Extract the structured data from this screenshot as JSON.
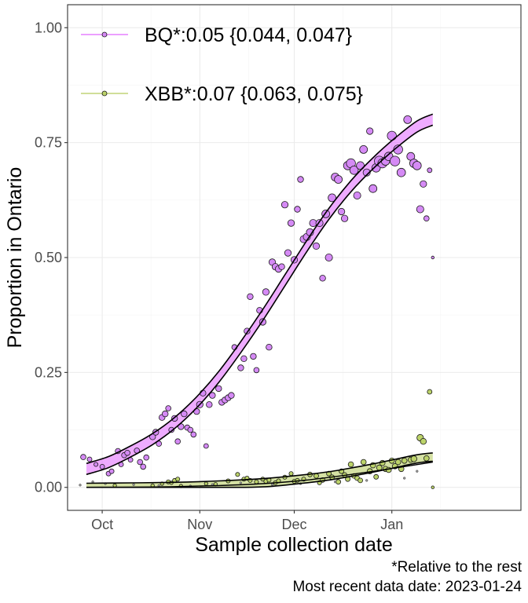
{
  "chart_data": {
    "type": "scatter",
    "xlabel": "Sample collection date",
    "ylabel": "Proportion in Ontario",
    "x_ticks": [
      {
        "date": "2022-10-01",
        "label": "Oct"
      },
      {
        "date": "2022-11-01",
        "label": "Nov"
      },
      {
        "date": "2022-12-01",
        "label": "Dec"
      },
      {
        "date": "2023-01-01",
        "label": "Jan"
      }
    ],
    "xlim": [
      "2022-09-20",
      "2023-02-11"
    ],
    "ylim": [
      -0.05,
      1.05
    ],
    "y_ticks": [
      0.0,
      0.25,
      0.5,
      0.75,
      1.0
    ],
    "y_tick_labels": [
      "0.00",
      "0.25",
      "0.50",
      "0.75",
      "1.00"
    ],
    "grid": true,
    "legend_position": "top-left",
    "series": [
      {
        "name": "BQ*:0.05 {0.044, 0.047}",
        "color": "#d58af5",
        "fit_color": "#e066ff",
        "fit": {
          "x": [
            "2022-09-26",
            "2022-10-03",
            "2022-10-10",
            "2022-10-17",
            "2022-10-24",
            "2022-10-31",
            "2022-11-07",
            "2022-11-14",
            "2022-11-21",
            "2022-11-28",
            "2022-12-05",
            "2022-12-12",
            "2022-12-19",
            "2022-12-26",
            "2023-01-02",
            "2023-01-09",
            "2023-01-14"
          ],
          "y": [
            0.04,
            0.055,
            0.078,
            0.105,
            0.14,
            0.185,
            0.24,
            0.305,
            0.375,
            0.45,
            0.525,
            0.595,
            0.655,
            0.705,
            0.748,
            0.785,
            0.8
          ],
          "band": 0.012
        },
        "points": [
          [
            "2022-09-25",
            0.066,
            0.3
          ],
          [
            "2022-09-27",
            0.061,
            0.25
          ],
          [
            "2022-09-29",
            0.05,
            0.2
          ],
          [
            "2022-10-01",
            0.045,
            0.25
          ],
          [
            "2022-10-03",
            0.03,
            0.25
          ],
          [
            "2022-10-04",
            0.035,
            0.25
          ],
          [
            "2022-10-06",
            0.079,
            0.3
          ],
          [
            "2022-10-07",
            0.05,
            0.25
          ],
          [
            "2022-10-08",
            0.07,
            0.3
          ],
          [
            "2022-10-09",
            0.075,
            0.3
          ],
          [
            "2022-10-10",
            0.06,
            0.25
          ],
          [
            "2022-10-12",
            0.08,
            0.3
          ],
          [
            "2022-10-13",
            0.055,
            0.3
          ],
          [
            "2022-10-14",
            0.045,
            0.3
          ],
          [
            "2022-10-15",
            0.065,
            0.3
          ],
          [
            "2022-10-17",
            0.11,
            0.35
          ],
          [
            "2022-10-18",
            0.12,
            0.35
          ],
          [
            "2022-10-19",
            0.095,
            0.3
          ],
          [
            "2022-10-20",
            0.152,
            0.35
          ],
          [
            "2022-10-21",
            0.16,
            0.35
          ],
          [
            "2022-10-22",
            0.172,
            0.3
          ],
          [
            "2022-10-23",
            0.125,
            0.3
          ],
          [
            "2022-10-24",
            0.15,
            0.35
          ],
          [
            "2022-10-25",
            0.1,
            0.3
          ],
          [
            "2022-10-26",
            0.132,
            0.35
          ],
          [
            "2022-10-27",
            0.16,
            0.35
          ],
          [
            "2022-10-28",
            0.13,
            0.3
          ],
          [
            "2022-10-29",
            0.125,
            0.3
          ],
          [
            "2022-10-30",
            0.115,
            0.3
          ],
          [
            "2022-10-31",
            0.165,
            0.35
          ],
          [
            "2022-11-01",
            0.18,
            0.4
          ],
          [
            "2022-11-02",
            0.205,
            0.35
          ],
          [
            "2022-11-03",
            0.09,
            0.25
          ],
          [
            "2022-11-04",
            0.18,
            0.35
          ],
          [
            "2022-11-05",
            0.2,
            0.35
          ],
          [
            "2022-11-07",
            0.215,
            0.35
          ],
          [
            "2022-11-08",
            0.185,
            0.35
          ],
          [
            "2022-11-09",
            0.19,
            0.35
          ],
          [
            "2022-11-10",
            0.195,
            0.35
          ],
          [
            "2022-11-11",
            0.2,
            0.35
          ],
          [
            "2022-11-12",
            0.305,
            0.3
          ],
          [
            "2022-11-14",
            0.26,
            0.35
          ],
          [
            "2022-11-15",
            0.28,
            0.35
          ],
          [
            "2022-11-16",
            0.34,
            0.35
          ],
          [
            "2022-11-17",
            0.415,
            0.35
          ],
          [
            "2022-11-18",
            0.285,
            0.35
          ],
          [
            "2022-11-19",
            0.255,
            0.3
          ],
          [
            "2022-11-20",
            0.385,
            0.35
          ],
          [
            "2022-11-21",
            0.36,
            0.4
          ],
          [
            "2022-11-22",
            0.425,
            0.4
          ],
          [
            "2022-11-23",
            0.305,
            0.35
          ],
          [
            "2022-11-24",
            0.49,
            0.4
          ],
          [
            "2022-11-25",
            0.48,
            0.4
          ],
          [
            "2022-11-26",
            0.475,
            0.4
          ],
          [
            "2022-11-27",
            0.48,
            0.35
          ],
          [
            "2022-11-28",
            0.615,
            0.4
          ],
          [
            "2022-11-29",
            0.51,
            0.4
          ],
          [
            "2022-11-30",
            0.575,
            0.4
          ],
          [
            "2022-12-01",
            0.495,
            0.4
          ],
          [
            "2022-12-02",
            0.605,
            0.35
          ],
          [
            "2022-12-03",
            0.67,
            0.35
          ],
          [
            "2022-12-04",
            0.54,
            0.45
          ],
          [
            "2022-12-05",
            0.545,
            0.45
          ],
          [
            "2022-12-06",
            0.555,
            0.45
          ],
          [
            "2022-12-07",
            0.575,
            0.45
          ],
          [
            "2022-12-08",
            0.525,
            0.4
          ],
          [
            "2022-12-09",
            0.575,
            0.45
          ],
          [
            "2022-12-10",
            0.455,
            0.35
          ],
          [
            "2022-12-11",
            0.595,
            0.5
          ],
          [
            "2022-12-12",
            0.5,
            0.45
          ],
          [
            "2022-12-13",
            0.63,
            0.5
          ],
          [
            "2022-12-14",
            0.675,
            0.5
          ],
          [
            "2022-12-15",
            0.67,
            0.5
          ],
          [
            "2022-12-16",
            0.6,
            0.4
          ],
          [
            "2022-12-17",
            0.585,
            0.4
          ],
          [
            "2022-12-18",
            0.7,
            0.55
          ],
          [
            "2022-12-19",
            0.705,
            0.6
          ],
          [
            "2022-12-20",
            0.69,
            0.55
          ],
          [
            "2022-12-21",
            0.635,
            0.45
          ],
          [
            "2022-12-22",
            0.7,
            0.5
          ],
          [
            "2022-12-23",
            0.735,
            0.5
          ],
          [
            "2022-12-24",
            0.685,
            0.45
          ],
          [
            "2022-12-25",
            0.775,
            0.4
          ],
          [
            "2022-12-26",
            0.65,
            0.5
          ],
          [
            "2022-12-27",
            0.695,
            0.55
          ],
          [
            "2022-12-28",
            0.71,
            0.65
          ],
          [
            "2022-12-29",
            0.705,
            0.6
          ],
          [
            "2022-12-30",
            0.71,
            0.55
          ],
          [
            "2022-12-31",
            0.72,
            0.55
          ],
          [
            "2023-01-01",
            0.765,
            0.6
          ],
          [
            "2023-01-02",
            0.71,
            0.65
          ],
          [
            "2023-01-03",
            0.735,
            0.6
          ],
          [
            "2023-01-04",
            0.685,
            0.55
          ],
          [
            "2023-01-06",
            0.8,
            0.5
          ],
          [
            "2023-01-07",
            0.72,
            0.5
          ],
          [
            "2023-01-08",
            0.705,
            0.55
          ],
          [
            "2023-01-09",
            0.7,
            0.55
          ],
          [
            "2023-01-10",
            0.605,
            0.45
          ],
          [
            "2023-01-11",
            0.66,
            0.4
          ],
          [
            "2023-01-12",
            0.585,
            0.3
          ],
          [
            "2023-01-13",
            0.69,
            0.25
          ],
          [
            "2023-01-14",
            0.5,
            0.1
          ]
        ]
      },
      {
        "name": "XBB*:0.07 {0.063, 0.075}",
        "color": "#bcd36a",
        "fit_color": "#b3c95a",
        "fit": {
          "x": [
            "2022-09-26",
            "2022-10-10",
            "2022-10-24",
            "2022-11-07",
            "2022-11-21",
            "2022-12-05",
            "2022-12-12",
            "2022-12-19",
            "2022-12-26",
            "2023-01-02",
            "2023-01-09",
            "2023-01-14"
          ],
          "y": [
            0.0,
            0.0008,
            0.002,
            0.005,
            0.01,
            0.019,
            0.025,
            0.033,
            0.042,
            0.052,
            0.062,
            0.066
          ],
          "band": 0.009
        },
        "points": [
          [
            "2022-10-05",
            0.004,
            0.15
          ],
          [
            "2022-10-17",
            0.004,
            0.15
          ],
          [
            "2022-10-20",
            0.008,
            0.15
          ],
          [
            "2022-10-22",
            0.012,
            0.2
          ],
          [
            "2022-10-23",
            0.01,
            0.15
          ],
          [
            "2022-10-24",
            0.015,
            0.2
          ],
          [
            "2022-10-25",
            0.018,
            0.2
          ],
          [
            "2022-10-26",
            0.003,
            0.15
          ],
          [
            "2022-11-03",
            0.008,
            0.15
          ],
          [
            "2022-11-06",
            0.007,
            0.15
          ],
          [
            "2022-11-10",
            0.014,
            0.2
          ],
          [
            "2022-11-13",
            0.028,
            0.2
          ],
          [
            "2022-11-15",
            0.018,
            0.2
          ],
          [
            "2022-11-16",
            0.02,
            0.2
          ],
          [
            "2022-11-17",
            0.015,
            0.2
          ],
          [
            "2022-11-19",
            0.012,
            0.2
          ],
          [
            "2022-11-21",
            0.018,
            0.2
          ],
          [
            "2022-11-22",
            0.013,
            0.2
          ],
          [
            "2022-11-23",
            0.016,
            0.2
          ],
          [
            "2022-11-25",
            0.01,
            0.2
          ],
          [
            "2022-11-26",
            0.014,
            0.2
          ],
          [
            "2022-11-28",
            0.022,
            0.2
          ],
          [
            "2022-11-30",
            0.03,
            0.2
          ],
          [
            "2022-12-01",
            0.013,
            0.2
          ],
          [
            "2022-12-02",
            0.015,
            0.2
          ],
          [
            "2022-12-04",
            0.018,
            0.2
          ],
          [
            "2022-12-06",
            0.028,
            0.25
          ],
          [
            "2022-12-08",
            0.025,
            0.25
          ],
          [
            "2022-12-09",
            0.01,
            0.2
          ],
          [
            "2022-12-10",
            0.016,
            0.25
          ],
          [
            "2022-12-12",
            0.03,
            0.25
          ],
          [
            "2022-12-13",
            0.022,
            0.25
          ],
          [
            "2022-12-15",
            0.012,
            0.25
          ],
          [
            "2022-12-16",
            0.035,
            0.25
          ],
          [
            "2022-12-17",
            0.027,
            0.25
          ],
          [
            "2022-12-18",
            0.018,
            0.25
          ],
          [
            "2022-12-19",
            0.05,
            0.3
          ],
          [
            "2022-12-20",
            0.025,
            0.25
          ],
          [
            "2022-12-21",
            0.02,
            0.25
          ],
          [
            "2022-12-22",
            0.015,
            0.25
          ],
          [
            "2022-12-23",
            0.055,
            0.3
          ],
          [
            "2022-12-25",
            0.035,
            0.3
          ],
          [
            "2022-12-26",
            0.048,
            0.3
          ],
          [
            "2022-12-27",
            0.023,
            0.25
          ],
          [
            "2022-12-28",
            0.043,
            0.3
          ],
          [
            "2022-12-29",
            0.053,
            0.3
          ],
          [
            "2022-12-30",
            0.04,
            0.3
          ],
          [
            "2022-12-31",
            0.038,
            0.3
          ],
          [
            "2023-01-01",
            0.058,
            0.3
          ],
          [
            "2023-01-02",
            0.046,
            0.3
          ],
          [
            "2023-01-03",
            0.055,
            0.3
          ],
          [
            "2023-01-04",
            0.04,
            0.3
          ],
          [
            "2023-01-05",
            0.058,
            0.3
          ],
          [
            "2023-01-07",
            0.06,
            0.3
          ],
          [
            "2023-01-08",
            0.062,
            0.35
          ],
          [
            "2023-01-10",
            0.108,
            0.4
          ],
          [
            "2023-01-11",
            0.1,
            0.35
          ],
          [
            "2023-01-12",
            0.063,
            0.3
          ],
          [
            "2023-01-13",
            0.208,
            0.25
          ],
          [
            "2023-01-14",
            0.0,
            0.1
          ]
        ]
      },
      {
        "name": "",
        "color": "#999999",
        "fit_color": "#000000",
        "fit": {
          "x": [
            "2022-09-26",
            "2022-10-10",
            "2022-10-24",
            "2022-11-07",
            "2022-11-21",
            "2022-12-05",
            "2022-12-19",
            "2023-01-02",
            "2023-01-14"
          ],
          "y": [
            0.0,
            0.0005,
            0.0015,
            0.004,
            0.008,
            0.016,
            0.028,
            0.042,
            0.055
          ],
          "band": 0.0
        },
        "points": [
          [
            "2022-09-24",
            0.005,
            0.05
          ],
          [
            "2022-09-28",
            0.012,
            0.05
          ],
          [
            "2022-10-02",
            0.008,
            0.05
          ],
          [
            "2022-10-11",
            0.006,
            0.05
          ],
          [
            "2022-10-19",
            0.004,
            0.05
          ],
          [
            "2022-10-29",
            0.003,
            0.05
          ],
          [
            "2022-11-05",
            0.006,
            0.05
          ],
          [
            "2022-11-14",
            0.01,
            0.05
          ],
          [
            "2022-11-24",
            0.006,
            0.05
          ],
          [
            "2022-12-03",
            0.008,
            0.05
          ],
          [
            "2022-12-14",
            0.012,
            0.05
          ],
          [
            "2022-12-24",
            0.015,
            0.05
          ],
          [
            "2023-01-05",
            0.02,
            0.05
          ],
          [
            "2023-01-09",
            0.035,
            0.05
          ]
        ]
      }
    ]
  },
  "captions": {
    "note": "*Relative to the rest",
    "recent": "Most recent data date: 2023-01-24"
  }
}
